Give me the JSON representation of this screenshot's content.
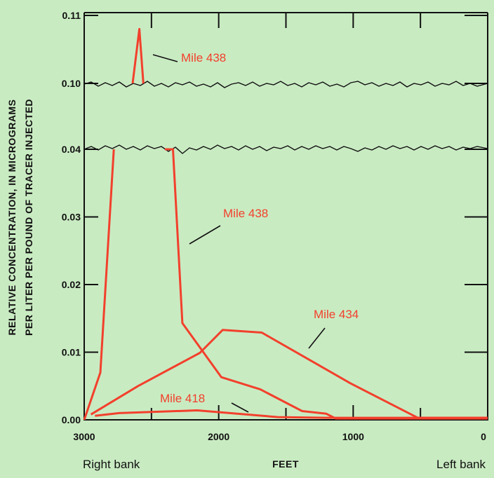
{
  "chart_data": {
    "type": "line",
    "title": "",
    "ylabel_line1": "RELATIVE CONCENTRATION, IN MICROGRAMS",
    "ylabel_line2": "PER LITER PER POUND OF TRACER INJECTED",
    "xlabel": "FEET",
    "x_left_label": "Right bank",
    "x_right_label": "Left bank",
    "xlim": [
      3000,
      0
    ],
    "ylim_lower": [
      0.0,
      0.04
    ],
    "ylim_upper": [
      0.1,
      0.11
    ],
    "axis_break": true,
    "grid": false,
    "x_ticks": [
      "3000",
      "2000",
      "1000",
      "0"
    ],
    "y_ticks": [
      "0.00",
      "0.01",
      "0.02",
      "0.03",
      "0.04",
      "0.10",
      "0.11"
    ],
    "line_color": "#f2402c",
    "series": [
      {
        "name": "Mile 438",
        "x": [
          3000,
          2880,
          2780,
          2640,
          2590,
          2560,
          2400,
          2340,
          2270,
          1980,
          1690,
          1380,
          1200,
          1130,
          0
        ],
        "y": [
          0.0,
          0.007,
          0.04,
          0.1,
          0.108,
          0.1,
          0.04,
          0.04,
          0.0143,
          0.0063,
          0.0045,
          0.0013,
          0.0009,
          0.0002,
          0.0002
        ]
      },
      {
        "name": "Mile 434",
        "x": [
          2950,
          2600,
          2140,
          1970,
          1680,
          1020,
          520,
          0
        ],
        "y": [
          0.0008,
          0.005,
          0.0099,
          0.0133,
          0.0129,
          0.0054,
          0.0003,
          0.0003
        ]
      },
      {
        "name": "Mile 418",
        "x": [
          2920,
          2740,
          2160,
          1560,
          1200,
          0
        ],
        "y": [
          0.0006,
          0.001,
          0.0014,
          0.0004,
          0.0003,
          0.0003
        ]
      }
    ],
    "annotations": [
      "Mile 438",
      "Mile 438",
      "Mile 434",
      "Mile 418"
    ]
  }
}
